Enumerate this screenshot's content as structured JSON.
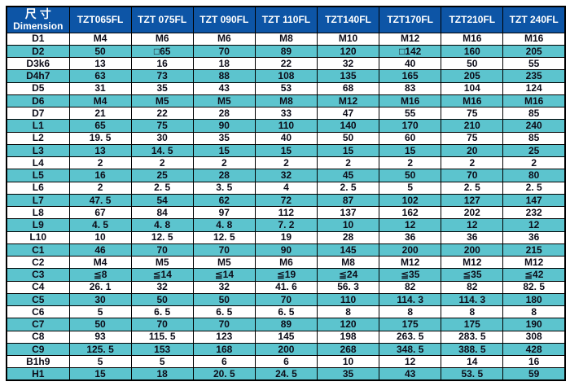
{
  "table": {
    "header": {
      "dimension_label_cn": "尺寸",
      "dimension_label_en": "Dimension",
      "columns": [
        "TZT065FL",
        "TZT 075FL",
        "TZT 090FL",
        "TZT 110FL",
        "TZT140FL",
        "TZT170FL",
        "TZT210FL",
        "TZT 240FL"
      ]
    },
    "rows": [
      {
        "label": "D1",
        "values": [
          "M4",
          "M6",
          "M6",
          "M8",
          "M10",
          "M12",
          "M16",
          "M16"
        ]
      },
      {
        "label": "D2",
        "values": [
          "50",
          "□65",
          "70",
          "89",
          "120",
          "□142",
          "160",
          "205"
        ]
      },
      {
        "label": "D3k6",
        "values": [
          "13",
          "16",
          "18",
          "22",
          "32",
          "40",
          "50",
          "55"
        ]
      },
      {
        "label": "D4h7",
        "values": [
          "63",
          "73",
          "88",
          "108",
          "135",
          "165",
          "205",
          "235"
        ]
      },
      {
        "label": "D5",
        "values": [
          "31",
          "35",
          "43",
          "53",
          "68",
          "83",
          "104",
          "124"
        ]
      },
      {
        "label": "D6",
        "values": [
          "M4",
          "M5",
          "M5",
          "M8",
          "M12",
          "M16",
          "M16",
          "M16"
        ]
      },
      {
        "label": "D7",
        "values": [
          "21",
          "22",
          "28",
          "33",
          "47",
          "55",
          "75",
          "85"
        ]
      },
      {
        "label": "L1",
        "values": [
          "65",
          "75",
          "90",
          "110",
          "140",
          "170",
          "210",
          "240"
        ]
      },
      {
        "label": "L2",
        "values": [
          "19. 5",
          "30",
          "35",
          "40",
          "50",
          "60",
          "75",
          "85"
        ]
      },
      {
        "label": "L3",
        "values": [
          "13",
          "14. 5",
          "15",
          "15",
          "15",
          "15",
          "20",
          "25"
        ]
      },
      {
        "label": "L4",
        "values": [
          "2",
          "2",
          "2",
          "2",
          "2",
          "2",
          "2",
          "2"
        ]
      },
      {
        "label": "L5",
        "values": [
          "16",
          "25",
          "28",
          "32",
          "45",
          "50",
          "70",
          "80"
        ]
      },
      {
        "label": "L6",
        "values": [
          "2",
          "2. 5",
          "3. 5",
          "4",
          "2. 5",
          "5",
          "2. 5",
          "2. 5"
        ]
      },
      {
        "label": "L7",
        "values": [
          "47. 5",
          "54",
          "62",
          "72",
          "87",
          "102",
          "127",
          "147"
        ]
      },
      {
        "label": "L8",
        "values": [
          "67",
          "84",
          "97",
          "112",
          "137",
          "162",
          "202",
          "232"
        ]
      },
      {
        "label": "L9",
        "values": [
          "4. 5",
          "4. 8",
          "4. 8",
          "7. 2",
          "10",
          "12",
          "12",
          "12"
        ]
      },
      {
        "label": "L10",
        "values": [
          "10",
          "12. 5",
          "12. 5",
          "19",
          "28",
          "36",
          "36",
          "36"
        ]
      },
      {
        "label": "C1",
        "values": [
          "46",
          "70",
          "70",
          "90",
          "145",
          "200",
          "200",
          "215"
        ]
      },
      {
        "label": "C2",
        "values": [
          "M4",
          "M5",
          "M5",
          "M6",
          "M8",
          "M12",
          "M12",
          "M12"
        ]
      },
      {
        "label": "C3",
        "values": [
          "≦8",
          "≦14",
          "≦14",
          "≦19",
          "≦24",
          "≦35",
          "≦35",
          "≦42"
        ]
      },
      {
        "label": "C4",
        "values": [
          "26. 1",
          "32",
          "32",
          "41. 6",
          "56. 3",
          "82",
          "82",
          "82. 5"
        ]
      },
      {
        "label": "C5",
        "values": [
          "30",
          "50",
          "50",
          "70",
          "110",
          "114. 3",
          "114. 3",
          "180"
        ]
      },
      {
        "label": "C6",
        "values": [
          "5",
          "6. 5",
          "6. 5",
          "6. 5",
          "8",
          "8",
          "8",
          "8"
        ]
      },
      {
        "label": "C7",
        "values": [
          "50",
          "70",
          "70",
          "89",
          "120",
          "175",
          "175",
          "190"
        ]
      },
      {
        "label": "C8",
        "values": [
          "93",
          "115. 5",
          "123",
          "145",
          "198",
          "263. 5",
          "283. 5",
          "308"
        ]
      },
      {
        "label": "C9",
        "values": [
          "125. 5",
          "153",
          "168",
          "200",
          "268",
          "348. 5",
          "388. 5",
          "428"
        ]
      },
      {
        "label": "B1h9",
        "values": [
          "5",
          "5",
          "6",
          "6",
          "10",
          "12",
          "14",
          "16"
        ]
      },
      {
        "label": "H1",
        "values": [
          "15",
          "18",
          "20. 5",
          "24. 5",
          "35",
          "43",
          "53. 5",
          "59"
        ]
      }
    ]
  },
  "colors": {
    "header_bg": "#0d55a6",
    "header_text": "#ffffff",
    "row_alt_bg": "#5cc4ce",
    "cell_text": "#0c0c18",
    "border": "#000000"
  }
}
